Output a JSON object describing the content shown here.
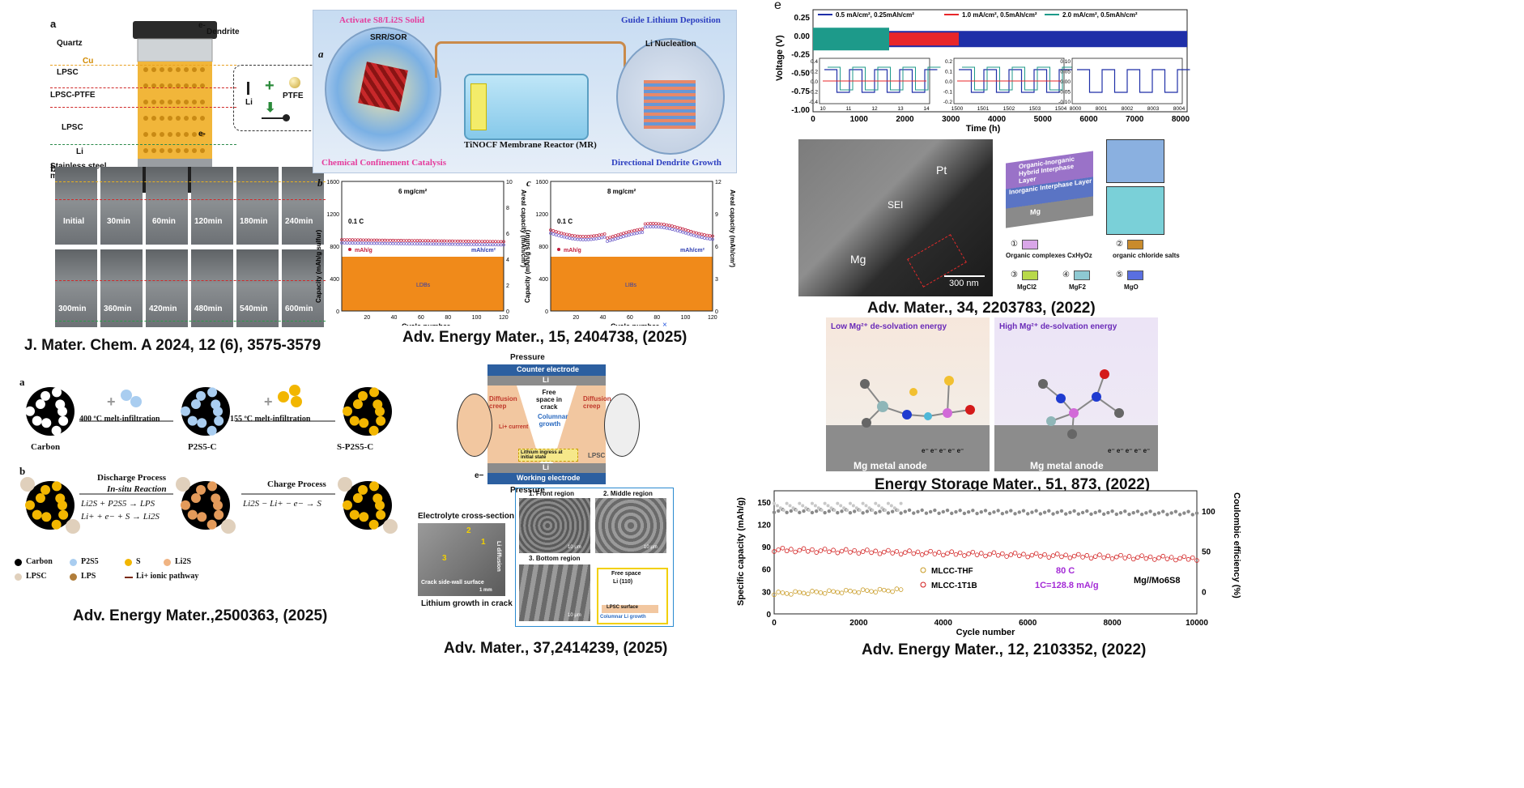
{
  "captions": {
    "p1": "J. Mater. Chem. A 2024, 12 (6), 3575-3579",
    "p2": "Adv. Energy Mater., 15, 2404738, (2025)",
    "p3": "Adv. Mater., 34, 2203783, (2022)",
    "p4": "Adv. Energy Mater.,2500363, (2025)",
    "p5": "Adv. Mater., 37,2414239, (2025)",
    "p6": "Energy Storage Mater., 51, 873, (2022)",
    "p7": "Adv. Energy Mater., 12, 2103352, (2022)"
  },
  "panel1": {
    "a": "a",
    "b": "b",
    "layers": [
      "Quartz",
      "Cu",
      "LPSC",
      "LPSC-PTFE",
      "LPSC",
      "Li",
      "Stainless steel mold"
    ],
    "dendrite": "Dendrite",
    "e_top": "e-",
    "e_bot": "e-",
    "inset_li": "Li",
    "inset_ptfe": "PTFE",
    "times_row1": [
      "Initial",
      "30min",
      "60min",
      "120min",
      "180min",
      "240min"
    ],
    "times_row2": [
      "300min",
      "360min",
      "420min",
      "480min",
      "540min",
      "600min"
    ]
  },
  "panel2": {
    "top_left": "Activate S8/Li2S Solid",
    "top_right": "Guide Lithium Deposition",
    "a": "a",
    "srr": "SRR/SOR",
    "li_nucleation": "Li Nucleation",
    "reactor": "TiNOCF Membrane Reactor (MR)",
    "bottom_left": "Chemical Confinement Catalysis",
    "bottom_right": "Directional Dendrite Growth",
    "b": "b",
    "c": "c",
    "plot_b_title": "6 mg/cm²",
    "plot_c_title": "8 mg/cm²",
    "rate": "0.1 C",
    "leg_mass": "mAh/g",
    "leg_areal": "mAh/cm²",
    "cell_b": "LDBs",
    "cell_c": "LIBs",
    "ylabel_left": "Capacity (mAh/g sulfur)",
    "ylabel_right": "Areal capacity (mAh/cm²)",
    "xlabel": "Cycle number",
    "y_ticks_left": [
      "0",
      "400",
      "800",
      "1200",
      "1600"
    ],
    "y_ticks_right_b": [
      "0",
      "2",
      "4",
      "6",
      "8",
      "10"
    ],
    "y_ticks_right_c": [
      "0",
      "3",
      "6",
      "9",
      "12"
    ],
    "x_ticks": [
      "20",
      "40",
      "60",
      "80",
      "100",
      "120"
    ],
    "stray": "×"
  },
  "panel3": {
    "e": "e",
    "legend": [
      "0.5 mA/cm², 0.25mAh/cm²",
      "1.0 mA/cm², 0.5mAh/cm²",
      "2.0 mA/cm², 0.5mAh/cm²"
    ],
    "ylabel": "Voltage (V)",
    "xlabel": "Time (h)",
    "y_ticks": [
      "0.25",
      "0.00",
      "-0.25",
      "-0.50",
      "-0.75",
      "-1.00"
    ],
    "x_ticks": [
      "0",
      "1000",
      "2000",
      "3000",
      "4000",
      "5000",
      "6000",
      "7000",
      "8000"
    ],
    "inset1_x": [
      "10",
      "11",
      "12",
      "13",
      "14"
    ],
    "inset1_y": [
      "0.4",
      "0.2",
      "0.0",
      "-0.2",
      "-0.4"
    ],
    "inset2_x": [
      "1500",
      "1501",
      "1502",
      "1503",
      "1504"
    ],
    "inset2_y": [
      "0.2",
      "0.1",
      "0.0",
      "-0.1",
      "-0.2"
    ],
    "inset3_x": [
      "8000",
      "8001",
      "8002",
      "8003",
      "8004"
    ],
    "inset3_y": [
      "0.10",
      "0.05",
      "0.00",
      "-0.05",
      "-0.10"
    ]
  },
  "panel3b": {
    "pt": "Pt",
    "sei": "SEI",
    "mg": "Mg",
    "scale": "300 nm",
    "layer_top": "Organic-Inorganic Hybrid Interphase Layer",
    "layer_mid": "Inorganic Interphase Layer",
    "layer_mg": "Mg",
    "legend": [
      {
        "n": "①",
        "t": "Organic complexes CxHyOz",
        "c": "#d9a6e8"
      },
      {
        "n": "②",
        "t": "organic chloride salts",
        "c": "#c98b2c"
      },
      {
        "n": "③",
        "t": "MgCl2",
        "c": "#b8d94a"
      },
      {
        "n": "④",
        "t": "MgF2",
        "c": "#8ec9d2"
      },
      {
        "n": "⑤",
        "t": "MgO",
        "c": "#5a6fe0"
      }
    ]
  },
  "panel4": {
    "a": "a",
    "b": "b",
    "carbon": "Carbon",
    "step1": "400 ºC melt-infiltration",
    "p2s5c": "P2S5-C",
    "step2": "155 ºC melt-infiltration",
    "sp2s5c": "S-P2S5-C",
    "discharge": "Discharge Process",
    "insitu": "In-situ Reaction",
    "eq1": "Li2S + P2S5 → LPS",
    "eq2": "Li+ + e− + S → Li2S",
    "charge": "Charge Process",
    "eq3": "Li2S − Li+ − e− → S",
    "legend": [
      {
        "t": "Carbon",
        "c": "#000000"
      },
      {
        "t": "P2S5",
        "c": "#a9cdf0"
      },
      {
        "t": "S",
        "c": "#f2b600"
      },
      {
        "t": "Li2S",
        "c": "#f0b483"
      },
      {
        "t": "LPSC",
        "c": "#e0d0bc"
      },
      {
        "t": "LPS",
        "c": "#b07d3a"
      },
      {
        "t": "Li+ ionic pathway",
        "c": "#7a2a10"
      }
    ]
  },
  "panel5": {
    "pressure_top": "Pressure",
    "counter": "Counter electrode",
    "li": "Li",
    "free_space": "Free space in crack",
    "diffusion": "Diffusion creep",
    "columnar": "Columnar growth",
    "li_current": "Li+ current",
    "ingress": "Lithium ingress at initial state",
    "lpsc": "LPSC",
    "working": "Working electrode",
    "pressure_bot": "Pressure",
    "xsec": "Electrolyte cross-section",
    "crack_wall": "Crack side-wall surface",
    "li_growth": "Lithium growth in crack",
    "li_diffusion": "Li diffusion",
    "scale": "1 mm",
    "front": "1. Front region",
    "middle": "2. Middle region",
    "bottom": "3. Bottom region",
    "um": "10 μm",
    "free_space2": "Free space",
    "li110": "Li (110)",
    "lpsc_surface": "LPSC surface",
    "columnar_li": "Columnar Li growth",
    "n1": "1",
    "n2": "2",
    "n3": "3",
    "e_minus": "e−"
  },
  "panel6": {
    "low": "Low Mg²⁺ de-solvation energy",
    "high": "High Mg²⁺ de-solvation energy",
    "anode": "Mg metal anode",
    "electrons": "e⁻ e⁻ e⁻ e⁻ e⁻"
  },
  "panel7": {
    "ylabel_left": "Specific capacity (mAh/g)",
    "ylabel_right": "Coulombic efficiency (%)",
    "xlabel": "Cycle number",
    "y_left": [
      "150",
      "120",
      "90",
      "60",
      "30",
      "0"
    ],
    "y_right": [
      "100",
      "50",
      "0"
    ],
    "x_ticks": [
      "0",
      "2000",
      "4000",
      "6000",
      "8000",
      "10000"
    ],
    "leg1": "MLCC-THF",
    "leg2": "MLCC-1T1B",
    "temp": "80 C",
    "rate": "1C=128.8 mA/g",
    "system": "Mg//Mo6S8"
  },
  "colors": {
    "navy": "#1f2fa8",
    "red": "#e8262a",
    "teal": "#1d9a8a",
    "grey": "#8a8a8a",
    "gold": "#c89a22",
    "crimson": "#d11a1a",
    "purple": "#a42bd6"
  }
}
